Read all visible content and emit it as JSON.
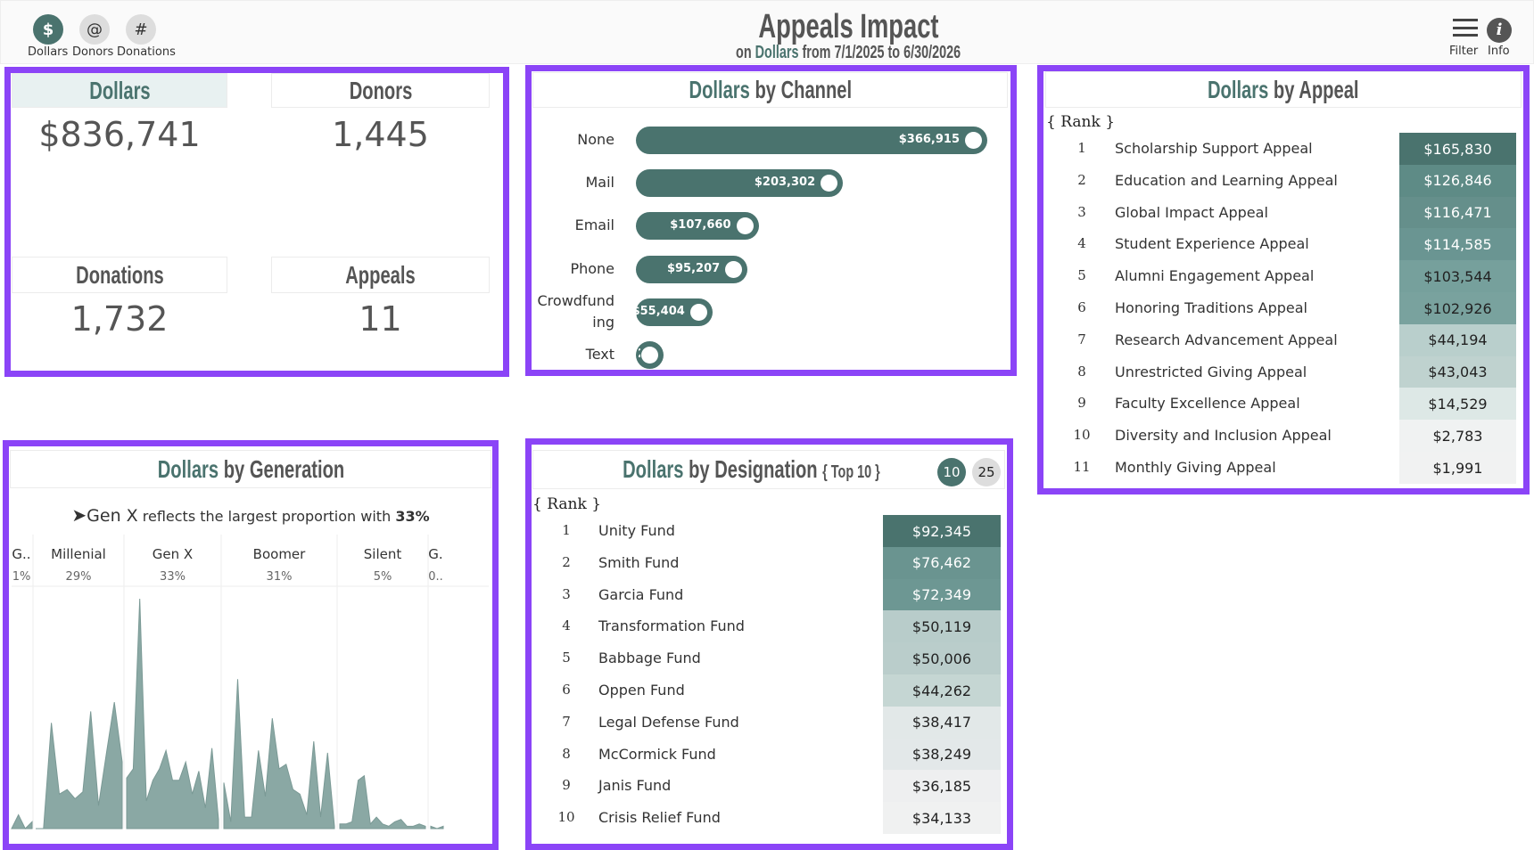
{
  "header": {
    "nav": [
      {
        "icon": "dollar-icon",
        "glyph": "$",
        "label": "Dollars",
        "active": true
      },
      {
        "icon": "at-icon",
        "glyph": "@",
        "label": "Donors",
        "active": false
      },
      {
        "icon": "hash-icon",
        "glyph": "#",
        "label": "Donations",
        "active": false
      }
    ],
    "title": "Appeals Impact",
    "subtitle_pre": "on",
    "subtitle_measure": "Dollars",
    "subtitle_post": "from 7/1/2025 to 6/30/2026",
    "filter_label": "Filter",
    "info_label": "Info"
  },
  "colors": {
    "accent": "#4a736e",
    "panel_border": "#8b44f7"
  },
  "kpis": [
    {
      "label": "Dollars",
      "value": "$836,741",
      "selected": true
    },
    {
      "label": "Donors",
      "value": "1,445"
    },
    {
      "label": "Donations",
      "value": "1,732"
    },
    {
      "label": "Appeals",
      "value": "11"
    }
  ],
  "channel": {
    "title_measure": "Dollars",
    "title_rest": "by Channel",
    "chart_data": {
      "type": "bar",
      "orientation": "horizontal",
      "categories": [
        "None",
        "Mail",
        "Email",
        "Phone",
        "Crowdfunding",
        "Text"
      ],
      "values": [
        366915,
        203302,
        107660,
        95207,
        55404,
        25
      ],
      "labels": [
        "$366,915",
        "$203,302",
        "$107,660",
        "$95,207",
        "$55,404",
        "25"
      ]
    }
  },
  "appeal": {
    "title_measure": "Dollars",
    "title_rest": "by Appeal",
    "rank_label": "{ Rank }",
    "rows": [
      {
        "rank": "1",
        "name": "Scholarship Support Appeal",
        "value": "$165,830",
        "bg": "#4a736e",
        "fg": "#fff"
      },
      {
        "rank": "2",
        "name": "Education and Learning Appeal",
        "value": "$126,846",
        "bg": "#5e8b86",
        "fg": "#fff"
      },
      {
        "rank": "3",
        "name": "Global Impact Appeal",
        "value": "$116,471",
        "bg": "#658f8b",
        "fg": "#fff"
      },
      {
        "rank": "4",
        "name": "Student Experience Appeal",
        "value": "$114,585",
        "bg": "#6a9592",
        "fg": "#fff"
      },
      {
        "rank": "5",
        "name": "Alumni Engagement Appeal",
        "value": "$103,544",
        "bg": "#76a09c",
        "fg": "#222"
      },
      {
        "rank": "6",
        "name": "Honoring Traditions Appeal",
        "value": "$102,926",
        "bg": "#79a29e",
        "fg": "#222"
      },
      {
        "rank": "7",
        "name": "Research Advancement Appeal",
        "value": "$44,194",
        "bg": "#b9cfcc",
        "fg": "#222"
      },
      {
        "rank": "8",
        "name": "Unrestricted Giving Appeal",
        "value": "$43,043",
        "bg": "#bfd2cf",
        "fg": "#222"
      },
      {
        "rank": "9",
        "name": "Faculty Excellence Appeal",
        "value": "$14,529",
        "bg": "#dde8e6",
        "fg": "#222"
      },
      {
        "rank": "10",
        "name": "Diversity and Inclusion Appeal",
        "value": "$2,783",
        "bg": "#f0f2f2",
        "fg": "#222"
      },
      {
        "rank": "11",
        "name": "Monthly Giving Appeal",
        "value": "$1,991",
        "bg": "#f1f2f2",
        "fg": "#222"
      }
    ]
  },
  "designation": {
    "title_measure": "Dollars",
    "title_rest": "by Designation",
    "title_suffix": "{ Top 10 }",
    "rank_label": "{ Rank }",
    "toggle": [
      {
        "label": "10",
        "active": true
      },
      {
        "label": "25",
        "active": false
      }
    ],
    "rows": [
      {
        "rank": "1",
        "name": "Unity Fund",
        "value": "$92,345",
        "bg": "#4a736e",
        "fg": "#fff"
      },
      {
        "rank": "2",
        "name": "Smith Fund",
        "value": "$76,462",
        "bg": "#6a9490",
        "fg": "#fff"
      },
      {
        "rank": "3",
        "name": "Garcia Fund",
        "value": "$72,349",
        "bg": "#6d9793",
        "fg": "#fff"
      },
      {
        "rank": "4",
        "name": "Transformation Fund",
        "value": "$50,119",
        "bg": "#b8ccca",
        "fg": "#222"
      },
      {
        "rank": "5",
        "name": "Babbage Fund",
        "value": "$50,006",
        "bg": "#bacdcb",
        "fg": "#222"
      },
      {
        "rank": "6",
        "name": "Oppen Fund",
        "value": "$44,262",
        "bg": "#c5d6d3",
        "fg": "#222"
      },
      {
        "rank": "7",
        "name": "Legal Defense Fund",
        "value": "$38,417",
        "bg": "#e2e8e8",
        "fg": "#222"
      },
      {
        "rank": "8",
        "name": "McCormick Fund",
        "value": "$38,249",
        "bg": "#e3e8e9",
        "fg": "#222"
      },
      {
        "rank": "9",
        "name": "Janis Fund",
        "value": "$36,185",
        "bg": "#eeeff0",
        "fg": "#222"
      },
      {
        "rank": "10",
        "name": "Crisis Relief Fund",
        "value": "$34,133",
        "bg": "#f0f1f1",
        "fg": "#222"
      }
    ]
  },
  "generation": {
    "title_measure": "Dollars",
    "title_rest": "by Generation",
    "callout_gen": "Gen X",
    "callout_text": "reflects the largest proportion with",
    "callout_pct": "33%",
    "chart_data": {
      "type": "area",
      "fill": "#8aa8a4",
      "segments": [
        {
          "name": "G..",
          "pct": "1%",
          "values": [
            0,
            6,
            0,
            3
          ]
        },
        {
          "name": "Millenial",
          "pct": "29%",
          "values": [
            0,
            0,
            46,
            15,
            17,
            13,
            16,
            51,
            10,
            33,
            55,
            29
          ]
        },
        {
          "name": "Gen X",
          "pct": "33%",
          "values": [
            22,
            26,
            100,
            12,
            21,
            26,
            34,
            21,
            21,
            29,
            15,
            25,
            9,
            35,
            4
          ]
        },
        {
          "name": "Boomer",
          "pct": "31%",
          "values": [
            20,
            3,
            65,
            5,
            5,
            34,
            14,
            48,
            26,
            28,
            17,
            15,
            6,
            38,
            5,
            33,
            1
          ]
        },
        {
          "name": "Silent",
          "pct": "5%",
          "values": [
            2,
            2,
            3,
            21,
            23,
            2,
            5,
            2,
            1,
            3,
            4,
            1,
            1,
            2,
            1
          ]
        },
        {
          "name": "G.",
          "pct": "0..",
          "values": [
            1,
            0,
            1
          ]
        }
      ]
    }
  }
}
